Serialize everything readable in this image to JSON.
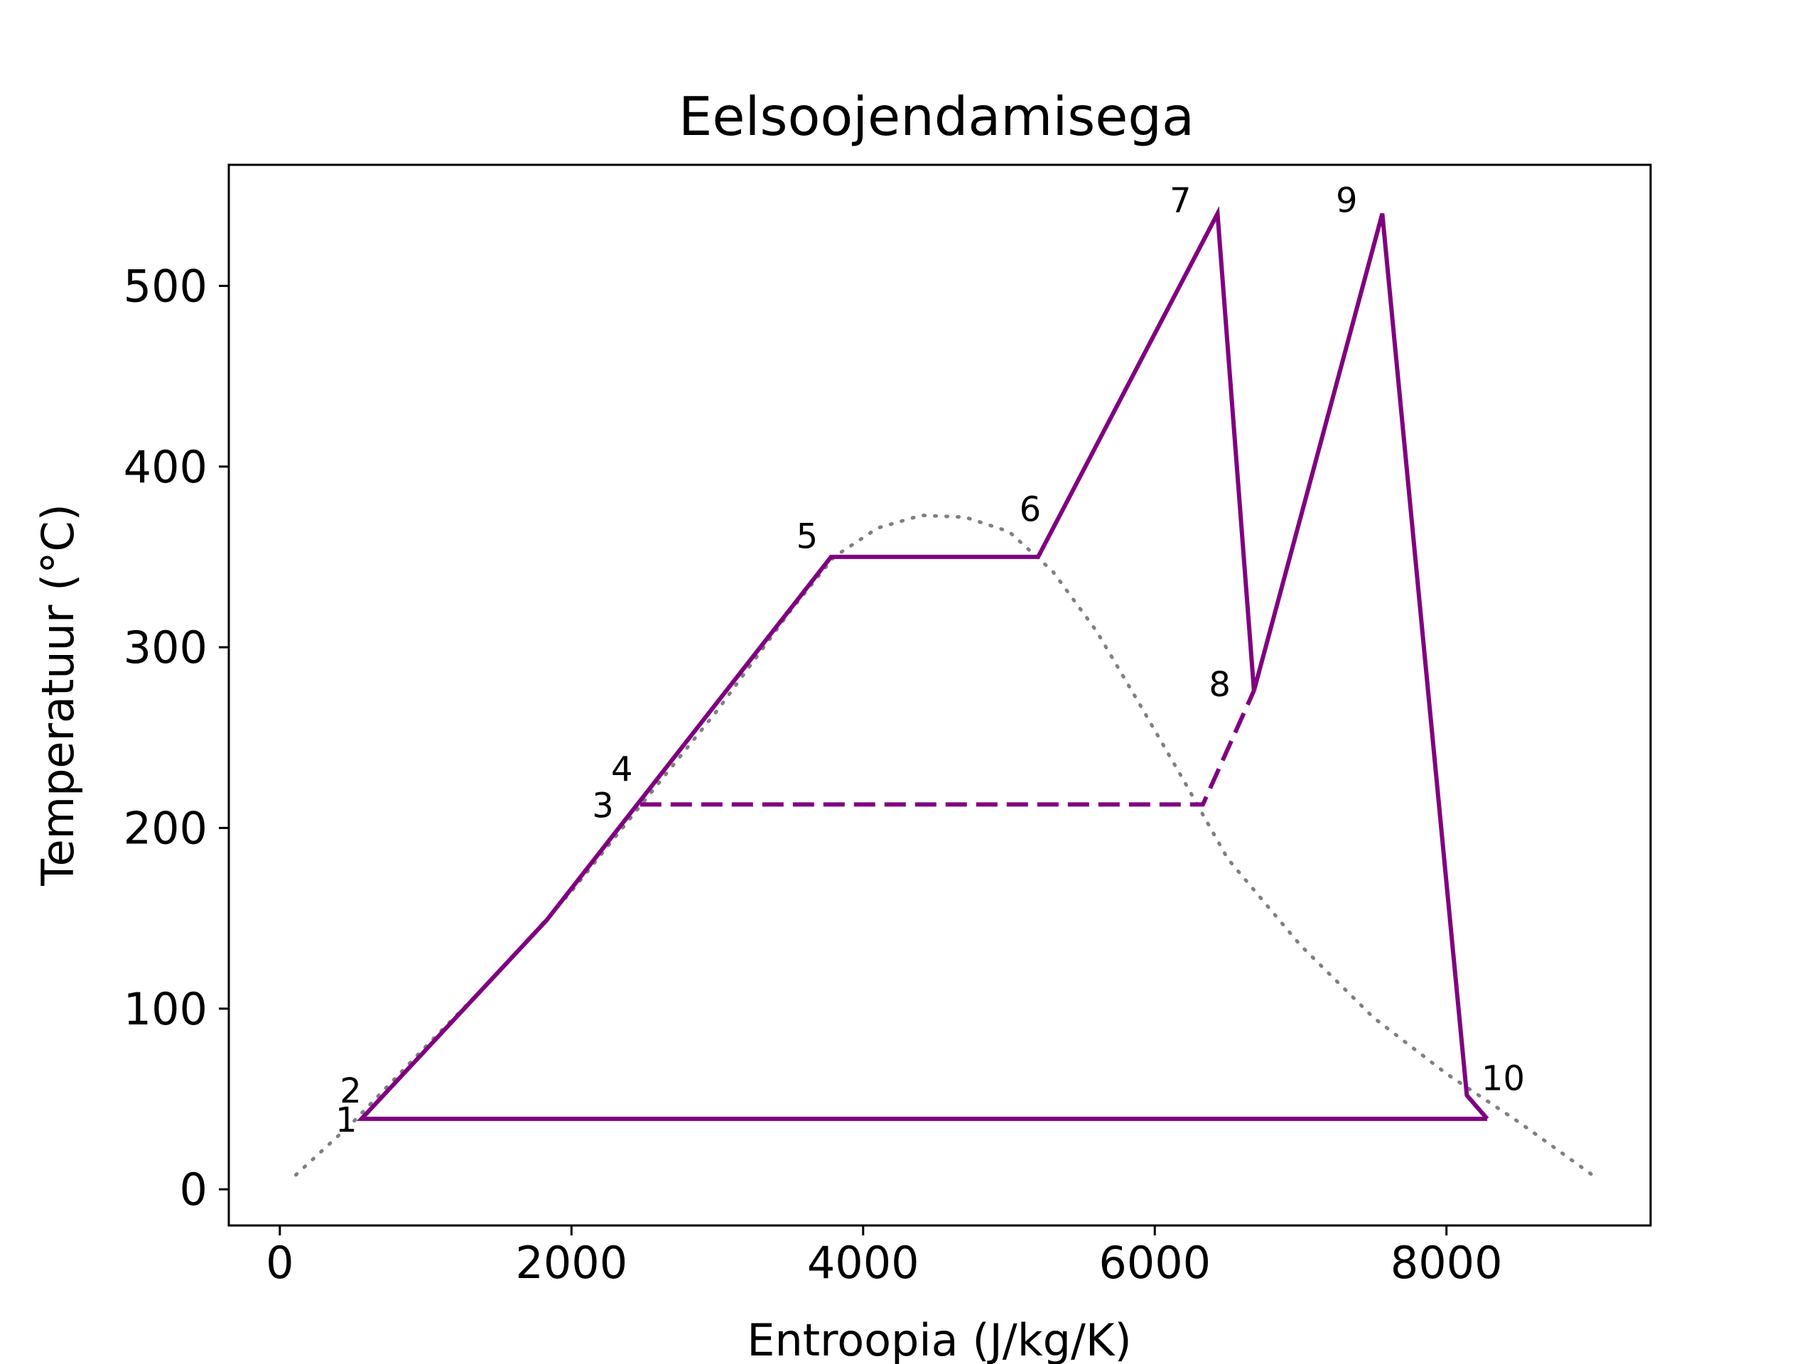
{
  "chart_data": {
    "type": "line",
    "title": "Eelsoojendamisega",
    "xlabel": "Entroopia (J/kg/K)",
    "ylabel": "Temperatuur (°C)",
    "xlim": [
      -350,
      9400
    ],
    "ylim": [
      -20,
      567
    ],
    "xticks": [
      0,
      2000,
      4000,
      6000,
      8000
    ],
    "yticks": [
      0,
      100,
      200,
      300,
      400,
      500
    ],
    "grid": false,
    "legend": "none",
    "colors": {
      "cycle": "#800080",
      "dome": "#808080"
    },
    "saturation_dome": {
      "style": "dotted",
      "points": [
        [
          110,
          8
        ],
        [
          500,
          37
        ],
        [
          1000,
          79
        ],
        [
          1500,
          120
        ],
        [
          2000,
          165
        ],
        [
          2500,
          215
        ],
        [
          3000,
          265
        ],
        [
          3500,
          320
        ],
        [
          3800,
          350
        ],
        [
          4100,
          366
        ],
        [
          4400,
          373
        ],
        [
          4700,
          372
        ],
        [
          5000,
          364
        ],
        [
          5300,
          342
        ],
        [
          5600,
          309
        ],
        [
          5900,
          268
        ],
        [
          6200,
          226
        ],
        [
          6500,
          183
        ],
        [
          7000,
          135
        ],
        [
          7500,
          95
        ],
        [
          8000,
          64
        ],
        [
          8500,
          37
        ],
        [
          9000,
          8
        ]
      ]
    },
    "series": [
      {
        "style": "solid",
        "points": [
          [
            8280,
            39
          ],
          [
            8140,
            52
          ],
          [
            7560,
            540
          ],
          [
            6680,
            276
          ],
          [
            6430,
            540
          ],
          [
            5200,
            350
          ],
          [
            3780,
            350
          ],
          [
            2470,
            215
          ],
          [
            1830,
            149
          ],
          [
            560,
            39
          ],
          [
            8280,
            39
          ]
        ]
      },
      {
        "style": "dashed",
        "points": [
          [
            2470,
            213
          ],
          [
            6330,
            213
          ],
          [
            6680,
            276
          ]
        ]
      }
    ],
    "state_labels": [
      {
        "text": "1",
        "x": 530,
        "y": 39,
        "anchor": "end",
        "dy": 0
      },
      {
        "text": "2",
        "x": 560,
        "y": 55,
        "anchor": "end",
        "dy": 1
      },
      {
        "text": "3",
        "x": 2290,
        "y": 213,
        "anchor": "end",
        "dy": 0
      },
      {
        "text": "4",
        "x": 2420,
        "y": 233,
        "anchor": "end",
        "dy": 0
      },
      {
        "text": "5",
        "x": 3690,
        "y": 362,
        "anchor": "end",
        "dy": 0
      },
      {
        "text": "6",
        "x": 5220,
        "y": 377,
        "anchor": "end",
        "dy": 0
      },
      {
        "text": "7",
        "x": 6250,
        "y": 548,
        "anchor": "end",
        "dy": 0
      },
      {
        "text": "8",
        "x": 6520,
        "y": 280,
        "anchor": "end",
        "dy": 0
      },
      {
        "text": "9",
        "x": 7390,
        "y": 548,
        "anchor": "end",
        "dy": 0
      },
      {
        "text": "10",
        "x": 8240,
        "y": 62,
        "anchor": "start",
        "dy": 0
      }
    ]
  }
}
